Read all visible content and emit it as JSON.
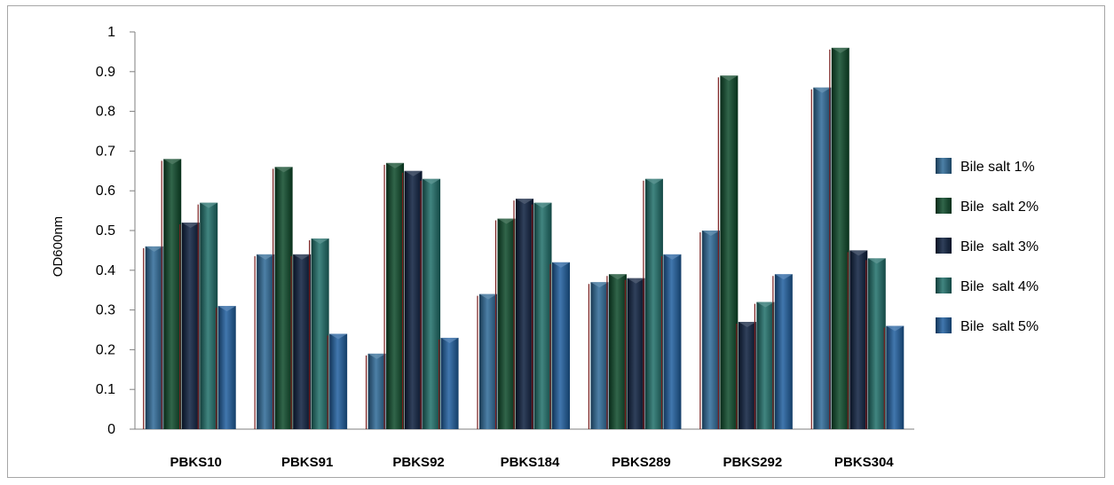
{
  "chart_data": {
    "type": "bar",
    "title": "",
    "xlabel": "",
    "ylabel": "OD600nm",
    "ylim": [
      0,
      1
    ],
    "yticks": [
      "0",
      "0.1",
      "0.2",
      "0.3",
      "0.4",
      "0.5",
      "0.6",
      "0.7",
      "0.8",
      "0.9",
      "1"
    ],
    "grid": false,
    "legend_position": "right",
    "categories": [
      "PBKS10",
      "PBKS91",
      "PBKS92",
      "PBKS184",
      "PBKS289",
      "PBKS292",
      "PBKS304"
    ],
    "series": [
      {
        "name": "Bile salt 1%",
        "color": "#2d6a98",
        "values": [
          0.46,
          0.44,
          0.19,
          0.34,
          0.37,
          0.5,
          0.86
        ]
      },
      {
        "name": "Bile  salt 2%",
        "color": "#0d4a2a",
        "values": [
          0.68,
          0.66,
          0.67,
          0.53,
          0.39,
          0.89,
          0.96
        ]
      },
      {
        "name": "Bile  salt 3%",
        "color": "#0c1e3e",
        "values": [
          0.52,
          0.44,
          0.65,
          0.58,
          0.38,
          0.27,
          0.45
        ]
      },
      {
        "name": "Bile  salt 4%",
        "color": "#1f6f6a",
        "values": [
          0.57,
          0.48,
          0.63,
          0.57,
          0.63,
          0.32,
          0.43
        ]
      },
      {
        "name": "Bile  salt 5%",
        "color": "#1f5fa0",
        "values": [
          0.31,
          0.24,
          0.23,
          0.42,
          0.44,
          0.39,
          0.26
        ]
      }
    ]
  }
}
